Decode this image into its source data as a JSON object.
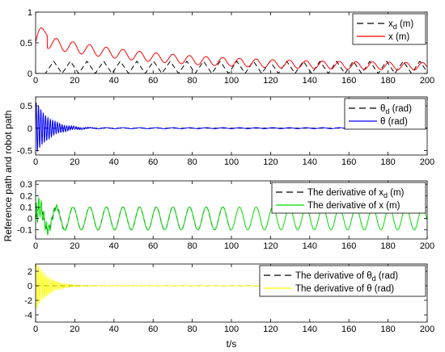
{
  "figure": {
    "ylabel": "Reference path and robot path",
    "xlabel": "t/s"
  },
  "chart_data": [
    {
      "type": "line",
      "panel": 1,
      "xlim": [
        0,
        200
      ],
      "ylim": [
        0,
        1
      ],
      "xticks": [
        0,
        20,
        40,
        60,
        80,
        100,
        120,
        140,
        160,
        180,
        200
      ],
      "yticks": [
        0,
        0.5,
        1
      ],
      "ytick_labels": [
        "0",
        "0.5",
        "1"
      ],
      "legend_position": "top-right",
      "series": [
        {
          "name_main": "x",
          "name_sub": "d",
          "name_suffix": " (m)",
          "color": "#000000",
          "style": "dashed",
          "model": {
            "kind": "sawtooth",
            "period": 8.5,
            "low": 0,
            "high": 0.2,
            "start": 5
          }
        },
        {
          "name_main": "x",
          "name_sub": "",
          "name_suffix": " (m)",
          "color": "#ff0000",
          "style": "solid",
          "model": {
            "kind": "decay_osc",
            "offset": 0.1,
            "amp0": 0.55,
            "amp_inf": 0.1,
            "tau": 60,
            "osc0": 0.1,
            "osc_inf": 0.06,
            "period": 8.5,
            "start_value": 0.55,
            "peak": 0.8
          }
        }
      ]
    },
    {
      "type": "line",
      "panel": 2,
      "xlim": [
        0,
        200
      ],
      "ylim": [
        -0.6,
        0.7
      ],
      "xticks": [
        0,
        20,
        40,
        60,
        80,
        100,
        120,
        140,
        160,
        180,
        200
      ],
      "yticks": [
        -0.5,
        0,
        0.5
      ],
      "ytick_labels": [
        "-0.5",
        "0",
        "0.5"
      ],
      "legend_position": "top-right",
      "series": [
        {
          "name_main": "θ",
          "name_sub": "d",
          "name_suffix": " (rad)",
          "color": "#000000",
          "style": "dashed",
          "model": {
            "kind": "flat",
            "value": 0
          }
        },
        {
          "name_main": "θ",
          "name_sub": "",
          "name_suffix": " (rad)",
          "color": "#0000ff",
          "style": "solid",
          "model": {
            "kind": "damped_fast",
            "amp0": 0.6,
            "tau": 7,
            "period": 1.2,
            "tail_amp": 0.012,
            "tail_period": 8.5
          }
        }
      ]
    },
    {
      "type": "line",
      "panel": 3,
      "xlim": [
        0,
        200
      ],
      "ylim": [
        -0.18,
        0.33
      ],
      "xticks": [
        0,
        20,
        40,
        60,
        80,
        100,
        120,
        140,
        160,
        180,
        200
      ],
      "yticks": [
        -0.1,
        0,
        0.1,
        0.2,
        0.3
      ],
      "ytick_labels": [
        "-0.1",
        "0",
        "0.1",
        "0.2",
        "0.3"
      ],
      "legend_position": "top-right",
      "series": [
        {
          "name_main": "The derivative of x",
          "name_sub": "d",
          "name_suffix": " (m)",
          "color": "#000000",
          "style": "dashed",
          "model": {
            "kind": "sine",
            "amp": 0.1,
            "period": 8.5,
            "end": 100
          }
        },
        {
          "name_main": "The derivative of x",
          "name_sub": "",
          "name_suffix": " (m)",
          "color": "#00dd00",
          "style": "solid",
          "model": {
            "kind": "sine_transient",
            "amp": 0.1,
            "period": 8.5,
            "trans_amp": 0.12,
            "trans_tau": 6,
            "trans_period": 1.3
          }
        }
      ]
    },
    {
      "type": "line",
      "panel": 4,
      "xlim": [
        0,
        200
      ],
      "ylim": [
        -5,
        3
      ],
      "xticks": [
        0,
        20,
        40,
        60,
        80,
        100,
        120,
        140,
        160,
        180,
        200
      ],
      "xtick_labels": [
        "0",
        "20",
        "40",
        "60",
        "80",
        "100",
        "120",
        "140",
        "160",
        "180",
        "200"
      ],
      "yticks": [
        -4,
        -2,
        0,
        2
      ],
      "ytick_labels": [
        "-4",
        "-2",
        "0",
        "2"
      ],
      "legend_position": "top-right",
      "series": [
        {
          "name_main": "The derivative of θ",
          "name_sub": "d",
          "name_suffix": " (rad)",
          "color": "#000000",
          "style": "dashed",
          "model": {
            "kind": "flat",
            "value": 0
          }
        },
        {
          "name_main": "The derivative of θ",
          "name_sub": "",
          "name_suffix": " (rad)",
          "color": "#ffff00",
          "style": "solid",
          "model": {
            "kind": "damped_fast",
            "amp0": 3.5,
            "tau": 6,
            "period": 1.2,
            "tail_amp": 0.02,
            "tail_period": 8.5
          }
        }
      ]
    }
  ]
}
